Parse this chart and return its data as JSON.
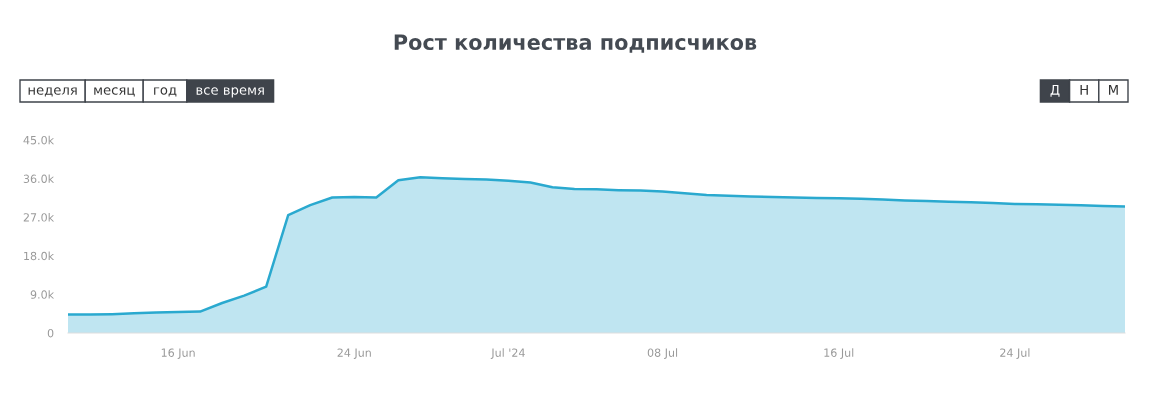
{
  "chart_data": {
    "type": "area",
    "title": "Рост количества подписчиков",
    "annotations": [
      "неделя",
      "месяц",
      "год",
      "все время",
      "Д",
      "Н",
      "М"
    ],
    "x": [
      "2024-06-11",
      "2024-06-12",
      "2024-06-13",
      "2024-06-14",
      "2024-06-15",
      "2024-06-16",
      "2024-06-17",
      "2024-06-18",
      "2024-06-19",
      "2024-06-20",
      "2024-06-21",
      "2024-06-22",
      "2024-06-23",
      "2024-06-24",
      "2024-06-25",
      "2024-06-26",
      "2024-06-27",
      "2024-06-28",
      "2024-06-29",
      "2024-06-30",
      "2024-07-01",
      "2024-07-02",
      "2024-07-03",
      "2024-07-04",
      "2024-07-05",
      "2024-07-06",
      "2024-07-07",
      "2024-07-08",
      "2024-07-09",
      "2024-07-10",
      "2024-07-11",
      "2024-07-12",
      "2024-07-13",
      "2024-07-14",
      "2024-07-15",
      "2024-07-16",
      "2024-07-17",
      "2024-07-18",
      "2024-07-19",
      "2024-07-20",
      "2024-07-21",
      "2024-07-22",
      "2024-07-23",
      "2024-07-24",
      "2024-07-25",
      "2024-07-26",
      "2024-07-27",
      "2024-07-28",
      "2024-07-29"
    ],
    "series": [
      {
        "color": "#2aa9cf",
        "values": [
          4300,
          4300,
          4400,
          4600,
          4800,
          4900,
          5000,
          7000,
          8700,
          10800,
          27500,
          29800,
          31600,
          31700,
          31600,
          35600,
          36300,
          36100,
          35900,
          35800,
          35500,
          35100,
          34000,
          33600,
          33500,
          33300,
          33200,
          33000,
          32600,
          32200,
          32000,
          31800,
          31700,
          31600,
          31500,
          31400,
          31300,
          31100,
          30900,
          30800,
          30600,
          30500,
          30300,
          30100,
          30000,
          29900,
          29800,
          29600,
          29500
        ]
      }
    ],
    "xlim": [
      "2024-06-11",
      "2024-07-29"
    ],
    "xticks": [
      {
        "value": "2024-06-16",
        "label": "16 Jun"
      },
      {
        "value": "2024-06-24",
        "label": "24 Jun"
      },
      {
        "value": "2024-07-01",
        "label": "Jul '24"
      },
      {
        "value": "2024-07-08",
        "label": "08 Jul"
      },
      {
        "value": "2024-07-16",
        "label": "16 Jul"
      },
      {
        "value": "2024-07-24",
        "label": "24 Jul"
      }
    ],
    "ylim": [
      0,
      45000
    ],
    "yticks": [
      0,
      {
        "value": 9000,
        "label": "9.0k"
      },
      {
        "value": 18000,
        "label": "18.0k"
      },
      {
        "value": 27000,
        "label": "27.0k"
      },
      {
        "value": 36000,
        "label": "36.0k"
      },
      {
        "value": 45000,
        "label": "45.0k"
      }
    ]
  }
}
